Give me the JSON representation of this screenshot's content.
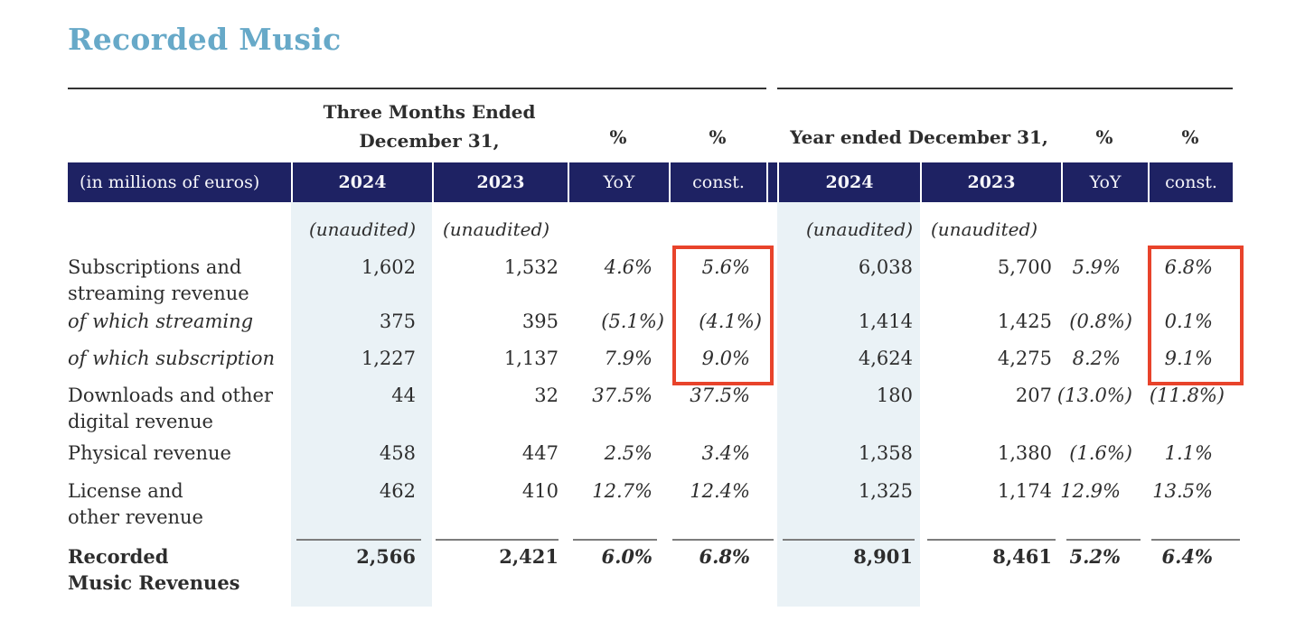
{
  "title": "Recorded Music",
  "colors": {
    "navy_header": "#1e2263",
    "title_blue": "#67a9c8",
    "column_tint": "#eaf2f6",
    "highlight_box_red": "#e8432b"
  },
  "table": {
    "quarter_header_line1": "Three Months Ended",
    "quarter_header_line2": "December 31,",
    "year_header": "Year ended December 31,",
    "percent_symbol": "%",
    "unit_label": "(in millions of euros)",
    "col_headers": [
      "2024",
      "2023",
      "YoY",
      "const.",
      "2024",
      "2023",
      "YoY",
      "const."
    ],
    "unaudited": "(unaudited)",
    "rows": [
      {
        "label_lines": [
          "Subscriptions and",
          "streaming revenue"
        ],
        "italic": false,
        "values": [
          "1,602",
          "1,532",
          "4.6%",
          "5.6%",
          "6,038",
          "5,700",
          "5.9%",
          "6.8%"
        ]
      },
      {
        "label_lines": [
          "of which streaming"
        ],
        "italic": true,
        "values": [
          "375",
          "395",
          "(5.1%)",
          "(4.1%)",
          "1,414",
          "1,425",
          "(0.8%)",
          "0.1%"
        ]
      },
      {
        "label_lines": [
          "of which subscription"
        ],
        "italic": true,
        "values": [
          "1,227",
          "1,137",
          "7.9%",
          "9.0%",
          "4,624",
          "4,275",
          "8.2%",
          "9.1%"
        ]
      },
      {
        "label_lines": [
          "Downloads and other",
          "digital revenue"
        ],
        "italic": false,
        "values": [
          "44",
          "32",
          "37.5%",
          "37.5%",
          "180",
          "207",
          "(13.0%)",
          "(11.8%)"
        ]
      },
      {
        "label_lines": [
          "Physical revenue"
        ],
        "italic": false,
        "values": [
          "458",
          "447",
          "2.5%",
          "3.4%",
          "1,358",
          "1,380",
          "(1.6%)",
          "1.1%"
        ]
      },
      {
        "label_lines": [
          "License and",
          "other revenue"
        ],
        "italic": false,
        "values": [
          "462",
          "410",
          "12.7%",
          "12.4%",
          "1,325",
          "1,174",
          "12.9%",
          "13.5%"
        ]
      }
    ],
    "total_row": {
      "label_lines": [
        "Recorded",
        "Music Revenues"
      ],
      "values": [
        "2,566",
        "2,421",
        "6.0%",
        "6.8%",
        "8,901",
        "8,461",
        "5.2%",
        "6.4%"
      ]
    },
    "annotations": {
      "boxed_column": "const.",
      "boxed_rows": [
        "Subscriptions and streaming revenue",
        "of which streaming",
        "of which subscription"
      ]
    }
  }
}
